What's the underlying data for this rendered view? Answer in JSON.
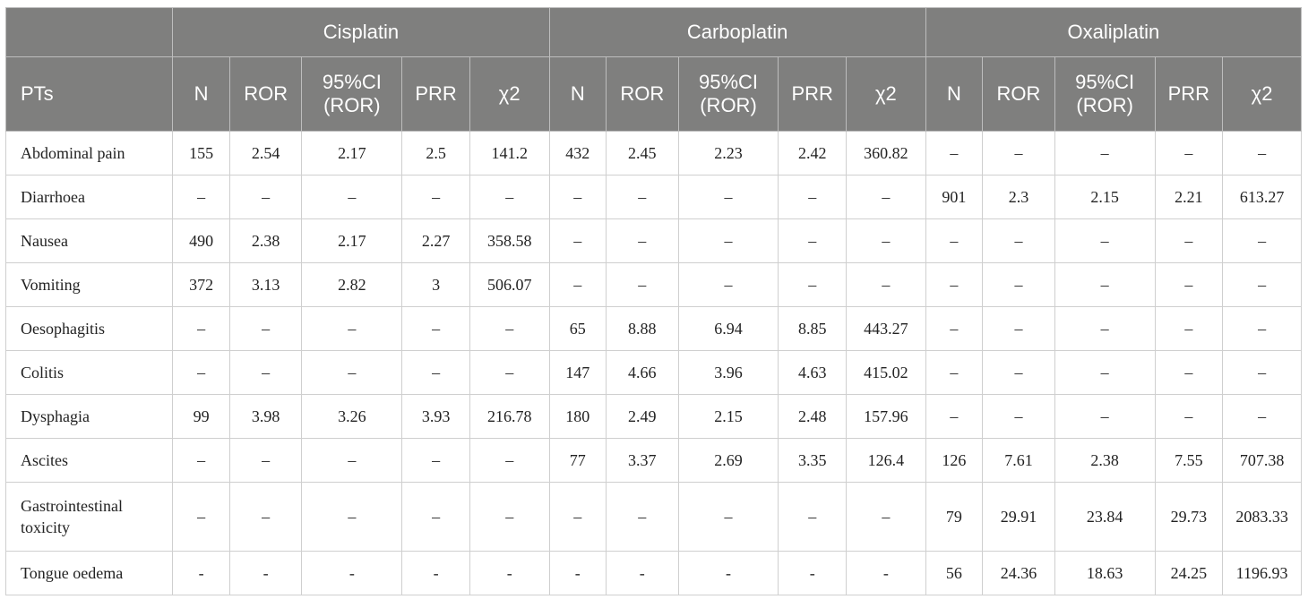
{
  "groups": [
    "Cisplatin",
    "Carboplatin",
    "Oxaliplatin"
  ],
  "columns": [
    "PTs",
    "N",
    "ROR",
    "95%CI\n(ROR)",
    "PRR",
    "χ2"
  ],
  "rows": [
    {
      "name": "Abdominal pain",
      "cells": [
        "155",
        "2.54",
        "2.17",
        "2.5",
        "141.2",
        "432",
        "2.45",
        "2.23",
        "2.42",
        "360.82",
        "–",
        "–",
        "–",
        "–",
        "–"
      ]
    },
    {
      "name": "Diarrhoea",
      "cells": [
        "–",
        "–",
        "–",
        "–",
        "–",
        "–",
        "–",
        "–",
        "–",
        "–",
        "901",
        "2.3",
        "2.15",
        "2.21",
        "613.27"
      ]
    },
    {
      "name": "Nausea",
      "cells": [
        "490",
        "2.38",
        "2.17",
        "2.27",
        "358.58",
        "–",
        "–",
        "–",
        "–",
        "–",
        "–",
        "–",
        "–",
        "–",
        "–"
      ]
    },
    {
      "name": "Vomiting",
      "cells": [
        "372",
        "3.13",
        "2.82",
        "3",
        "506.07",
        "–",
        "–",
        "–",
        "–",
        "–",
        "–",
        "–",
        "–",
        "–",
        "–"
      ]
    },
    {
      "name": "Oesophagitis",
      "cells": [
        "–",
        "–",
        "–",
        "–",
        "–",
        "65",
        "8.88",
        "6.94",
        "8.85",
        "443.27",
        "–",
        "–",
        "–",
        "–",
        "–"
      ]
    },
    {
      "name": "Colitis",
      "cells": [
        "–",
        "–",
        "–",
        "–",
        "–",
        "147",
        "4.66",
        "3.96",
        "4.63",
        "415.02",
        "–",
        "–",
        "–",
        "–",
        "–"
      ]
    },
    {
      "name": "Dysphagia",
      "cells": [
        "99",
        "3.98",
        "3.26",
        "3.93",
        "216.78",
        "180",
        "2.49",
        "2.15",
        "2.48",
        "157.96",
        "–",
        "–",
        "–",
        "–",
        "–"
      ]
    },
    {
      "name": "Ascites",
      "cells": [
        "–",
        "–",
        "–",
        "–",
        "–",
        "77",
        "3.37",
        "2.69",
        "3.35",
        "126.4",
        "126",
        "7.61",
        "2.38",
        "7.55",
        "707.38"
      ]
    },
    {
      "name": "Gastrointestinal\ntoxicity",
      "cells": [
        "–",
        "–",
        "–",
        "–",
        "–",
        "–",
        "–",
        "–",
        "–",
        "–",
        "79",
        "29.91",
        "23.84",
        "29.73",
        "2083.33"
      ]
    },
    {
      "name": "Tongue oedema",
      "cells": [
        "-",
        "-",
        "-",
        "-",
        "-",
        "-",
        "-",
        "-",
        "-",
        "-",
        "56",
        "24.36",
        "18.63",
        "24.25",
        "1196.93"
      ]
    }
  ]
}
